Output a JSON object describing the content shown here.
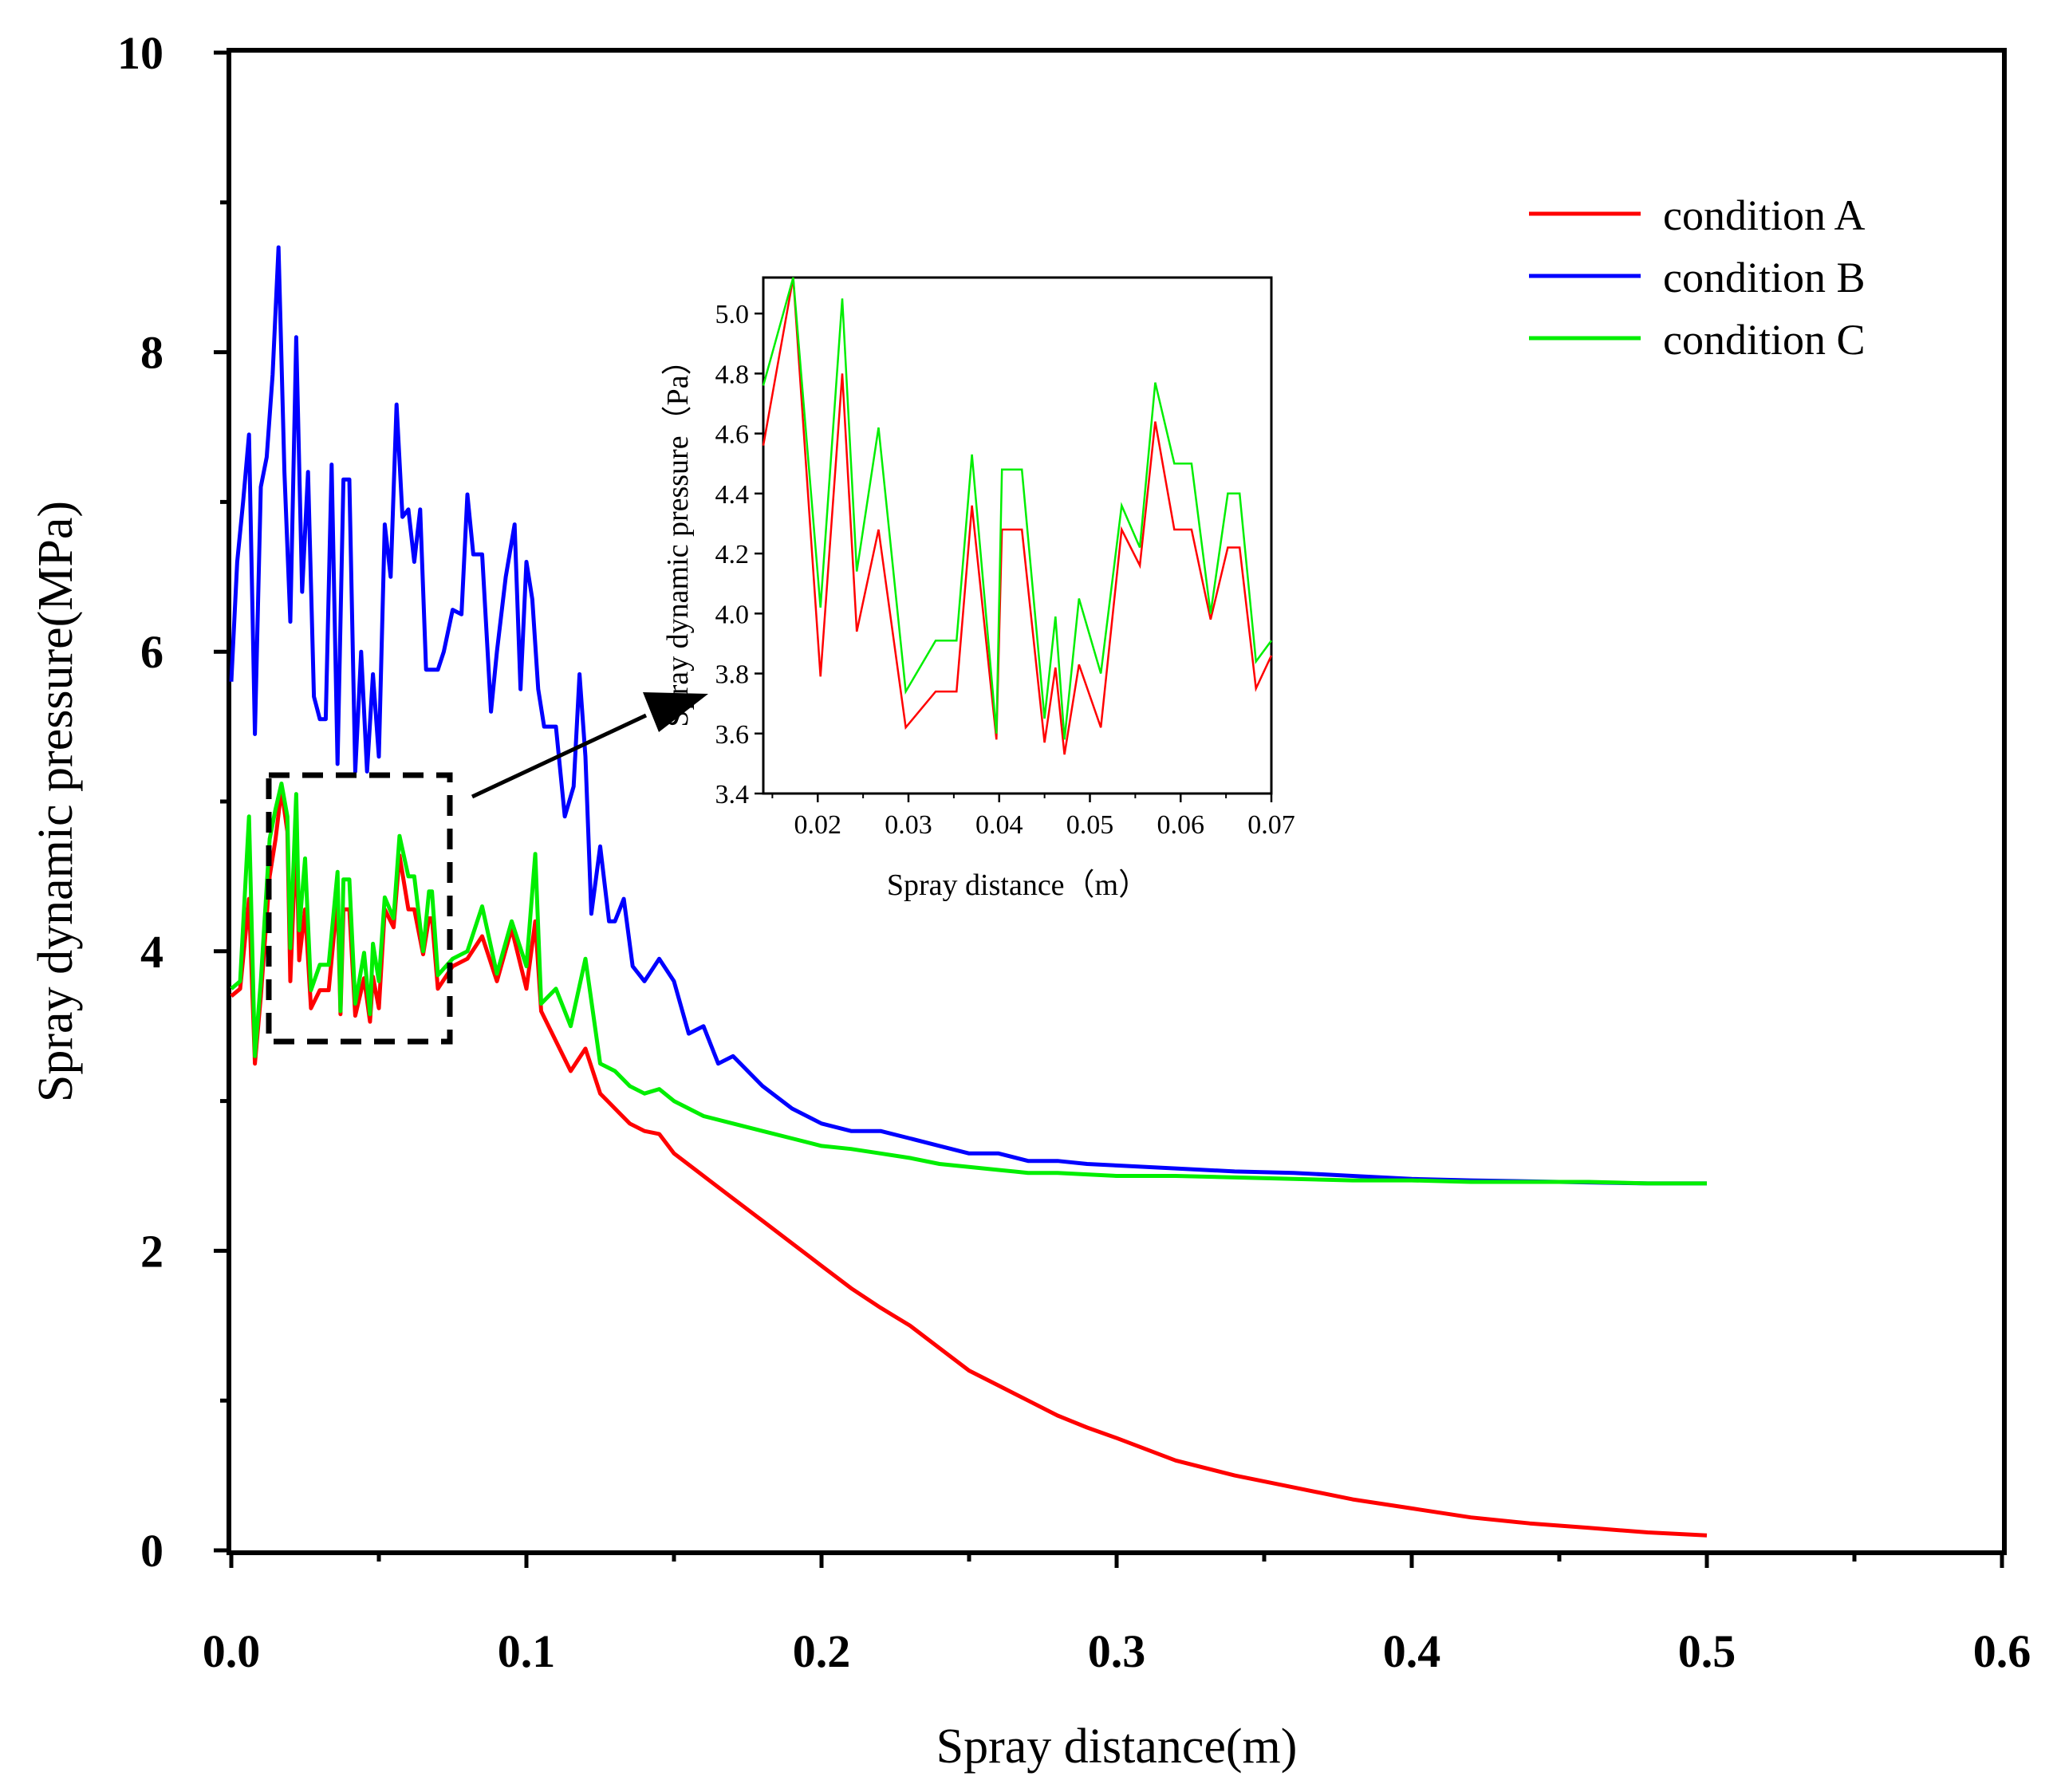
{
  "chart_data": [
    {
      "type": "line",
      "xlabel": "Spray distance(m)",
      "ylabel": "Spray dynamic pressure(MPa)",
      "xlim": [
        0,
        0.6
      ],
      "ylim": [
        0,
        10
      ],
      "x_ticks": [
        "0.0",
        "0.1",
        "0.2",
        "0.3",
        "0.4",
        "0.5",
        "0.6"
      ],
      "y_ticks": [
        "0",
        "2",
        "4",
        "6",
        "8",
        "10"
      ],
      "legend": {
        "position": "top-right",
        "entries": [
          "condition A",
          "condition B",
          "condition C"
        ]
      },
      "series": [
        {
          "name": "condition A",
          "color": "#ff0000",
          "x": [
            0,
            0.003,
            0.006,
            0.008,
            0.01,
            0.013,
            0.015,
            0.017,
            0.019,
            0.02,
            0.022,
            0.023,
            0.025,
            0.027,
            0.03,
            0.033,
            0.036,
            0.037,
            0.038,
            0.04,
            0.042,
            0.045,
            0.047,
            0.048,
            0.05,
            0.052,
            0.055,
            0.057,
            0.06,
            0.062,
            0.065,
            0.067,
            0.068,
            0.07,
            0.075,
            0.08,
            0.085,
            0.09,
            0.095,
            0.1,
            0.103,
            0.105,
            0.11,
            0.115,
            0.12,
            0.125,
            0.13,
            0.135,
            0.14,
            0.145,
            0.15,
            0.16,
            0.17,
            0.18,
            0.19,
            0.2,
            0.21,
            0.22,
            0.23,
            0.24,
            0.25,
            0.26,
            0.27,
            0.28,
            0.29,
            0.3,
            0.32,
            0.34,
            0.36,
            0.38,
            0.4,
            0.42,
            0.44,
            0.46,
            0.48,
            0.5
          ],
          "values": [
            3.7,
            3.75,
            4.35,
            3.25,
            3.7,
            4.5,
            4.75,
            5.08,
            4.8,
            3.8,
            4.8,
            3.94,
            4.28,
            3.62,
            3.74,
            3.74,
            4.36,
            3.58,
            4.28,
            4.28,
            3.57,
            3.82,
            3.53,
            3.83,
            3.62,
            4.28,
            4.16,
            4.64,
            4.28,
            4.28,
            3.98,
            4.22,
            4.22,
            3.75,
            3.9,
            3.95,
            4.1,
            3.8,
            4.15,
            3.75,
            4.2,
            3.6,
            3.4,
            3.2,
            3.35,
            3.05,
            2.95,
            2.85,
            2.8,
            2.78,
            2.65,
            2.5,
            2.35,
            2.2,
            2.05,
            1.9,
            1.75,
            1.62,
            1.5,
            1.35,
            1.2,
            1.1,
            1.0,
            0.9,
            0.82,
            0.75,
            0.6,
            0.5,
            0.42,
            0.34,
            0.28,
            0.22,
            0.18,
            0.15,
            0.12,
            0.1
          ]
        },
        {
          "name": "condition B",
          "color": "#0000ff",
          "x": [
            0,
            0.002,
            0.004,
            0.006,
            0.008,
            0.01,
            0.012,
            0.014,
            0.016,
            0.018,
            0.02,
            0.022,
            0.024,
            0.026,
            0.028,
            0.03,
            0.032,
            0.034,
            0.036,
            0.038,
            0.04,
            0.042,
            0.044,
            0.046,
            0.048,
            0.05,
            0.052,
            0.054,
            0.056,
            0.058,
            0.06,
            0.062,
            0.064,
            0.066,
            0.068,
            0.07,
            0.072,
            0.075,
            0.078,
            0.08,
            0.082,
            0.085,
            0.088,
            0.09,
            0.093,
            0.096,
            0.098,
            0.1,
            0.102,
            0.104,
            0.106,
            0.108,
            0.11,
            0.113,
            0.116,
            0.118,
            0.12,
            0.122,
            0.125,
            0.128,
            0.13,
            0.133,
            0.136,
            0.14,
            0.145,
            0.15,
            0.155,
            0.16,
            0.165,
            0.17,
            0.175,
            0.18,
            0.19,
            0.2,
            0.21,
            0.22,
            0.23,
            0.24,
            0.25,
            0.26,
            0.27,
            0.28,
            0.29,
            0.3,
            0.32,
            0.34,
            0.36,
            0.38,
            0.4,
            0.42,
            0.45,
            0.48,
            0.5
          ],
          "values": [
            5.8,
            6.6,
            7.0,
            7.45,
            5.45,
            7.1,
            7.3,
            7.85,
            8.7,
            7.2,
            6.2,
            8.1,
            6.4,
            7.2,
            5.7,
            5.55,
            5.55,
            7.25,
            5.25,
            7.15,
            7.15,
            5.2,
            6.0,
            5.2,
            5.85,
            5.3,
            6.85,
            6.5,
            7.65,
            6.9,
            6.95,
            6.6,
            6.95,
            5.88,
            5.88,
            5.88,
            6.0,
            6.28,
            6.25,
            7.05,
            6.65,
            6.65,
            5.6,
            6.0,
            6.5,
            6.85,
            5.75,
            6.6,
            6.35,
            5.75,
            5.5,
            5.5,
            5.5,
            4.9,
            5.1,
            5.85,
            5.3,
            4.25,
            4.7,
            4.2,
            4.2,
            4.35,
            3.9,
            3.8,
            3.95,
            3.8,
            3.45,
            3.5,
            3.25,
            3.3,
            3.2,
            3.1,
            2.95,
            2.85,
            2.8,
            2.8,
            2.75,
            2.7,
            2.65,
            2.65,
            2.6,
            2.6,
            2.58,
            2.57,
            2.55,
            2.53,
            2.52,
            2.5,
            2.48,
            2.47,
            2.46,
            2.45,
            2.45
          ]
        },
        {
          "name": "condition C",
          "color": "#00ee00",
          "x": [
            0,
            0.003,
            0.006,
            0.008,
            0.01,
            0.013,
            0.015,
            0.017,
            0.019,
            0.02,
            0.022,
            0.023,
            0.025,
            0.027,
            0.03,
            0.033,
            0.036,
            0.037,
            0.038,
            0.04,
            0.042,
            0.045,
            0.047,
            0.048,
            0.05,
            0.052,
            0.055,
            0.057,
            0.06,
            0.062,
            0.065,
            0.067,
            0.068,
            0.07,
            0.075,
            0.08,
            0.085,
            0.09,
            0.095,
            0.1,
            0.103,
            0.105,
            0.11,
            0.115,
            0.12,
            0.125,
            0.13,
            0.135,
            0.14,
            0.145,
            0.15,
            0.16,
            0.17,
            0.18,
            0.19,
            0.2,
            0.21,
            0.22,
            0.23,
            0.24,
            0.25,
            0.26,
            0.27,
            0.28,
            0.29,
            0.3,
            0.32,
            0.34,
            0.36,
            0.38,
            0.4,
            0.42,
            0.44,
            0.46,
            0.48,
            0.5
          ],
          "values": [
            3.75,
            3.8,
            4.9,
            3.3,
            3.8,
            4.75,
            4.95,
            5.12,
            4.9,
            4.02,
            5.05,
            4.14,
            4.62,
            3.74,
            3.91,
            3.91,
            4.53,
            3.6,
            4.48,
            4.48,
            3.65,
            3.99,
            3.58,
            4.05,
            3.8,
            4.36,
            4.22,
            4.77,
            4.5,
            4.5,
            4.0,
            4.4,
            4.4,
            3.84,
            3.95,
            4.0,
            4.3,
            3.85,
            4.2,
            3.9,
            4.65,
            3.65,
            3.75,
            3.5,
            3.95,
            3.25,
            3.2,
            3.1,
            3.05,
            3.08,
            3.0,
            2.9,
            2.85,
            2.8,
            2.75,
            2.7,
            2.68,
            2.65,
            2.62,
            2.58,
            2.56,
            2.54,
            2.52,
            2.52,
            2.51,
            2.5,
            2.5,
            2.49,
            2.48,
            2.47,
            2.47,
            2.46,
            2.46,
            2.46,
            2.45,
            2.45
          ]
        }
      ]
    },
    {
      "type": "line",
      "note": "inset zoom of dashed region",
      "xlabel": "Spray distance（m）",
      "ylabel": "Spray dynamic pressure（Pa）",
      "xlim": [
        0.014,
        0.07
      ],
      "ylim": [
        3.4,
        5.12
      ],
      "x_ticks": [
        "0.02",
        "0.03",
        "0.04",
        "0.05",
        "0.06",
        "0.07"
      ],
      "y_ticks": [
        "3.4",
        "3.6",
        "3.8",
        "4.0",
        "4.2",
        "4.4",
        "4.6",
        "4.8",
        "5.0"
      ],
      "series": [
        {
          "name": "condition A",
          "color": "#ff0000",
          "x": [
            0.014,
            0.0173,
            0.0203,
            0.0227,
            0.0243,
            0.0267,
            0.0297,
            0.033,
            0.0353,
            0.037,
            0.0397,
            0.0403,
            0.0425,
            0.045,
            0.0462,
            0.0472,
            0.0488,
            0.0512,
            0.0535,
            0.0555,
            0.0572,
            0.0593,
            0.0612,
            0.0633,
            0.0652,
            0.0665,
            0.0683,
            0.07
          ],
          "values": [
            4.56,
            5.12,
            3.79,
            4.8,
            3.94,
            4.28,
            3.62,
            3.74,
            3.74,
            4.36,
            3.58,
            4.28,
            4.28,
            3.57,
            3.82,
            3.53,
            3.83,
            3.62,
            4.28,
            4.16,
            4.64,
            4.28,
            4.28,
            3.98,
            4.22,
            4.22,
            3.75,
            3.86
          ]
        },
        {
          "name": "condition C",
          "color": "#00ee00",
          "x": [
            0.014,
            0.0173,
            0.0203,
            0.0227,
            0.0243,
            0.0267,
            0.0297,
            0.033,
            0.0353,
            0.037,
            0.0397,
            0.0403,
            0.0425,
            0.045,
            0.0462,
            0.0472,
            0.0488,
            0.0512,
            0.0535,
            0.0555,
            0.0572,
            0.0593,
            0.0612,
            0.0633,
            0.0652,
            0.0665,
            0.0683,
            0.07
          ],
          "values": [
            4.76,
            5.12,
            4.02,
            5.05,
            4.14,
            4.62,
            3.74,
            3.91,
            3.91,
            4.53,
            3.6,
            4.48,
            4.48,
            3.65,
            3.99,
            3.58,
            4.05,
            3.8,
            4.36,
            4.22,
            4.77,
            4.5,
            4.5,
            4.0,
            4.4,
            4.4,
            3.84,
            3.91
          ]
        }
      ]
    }
  ]
}
